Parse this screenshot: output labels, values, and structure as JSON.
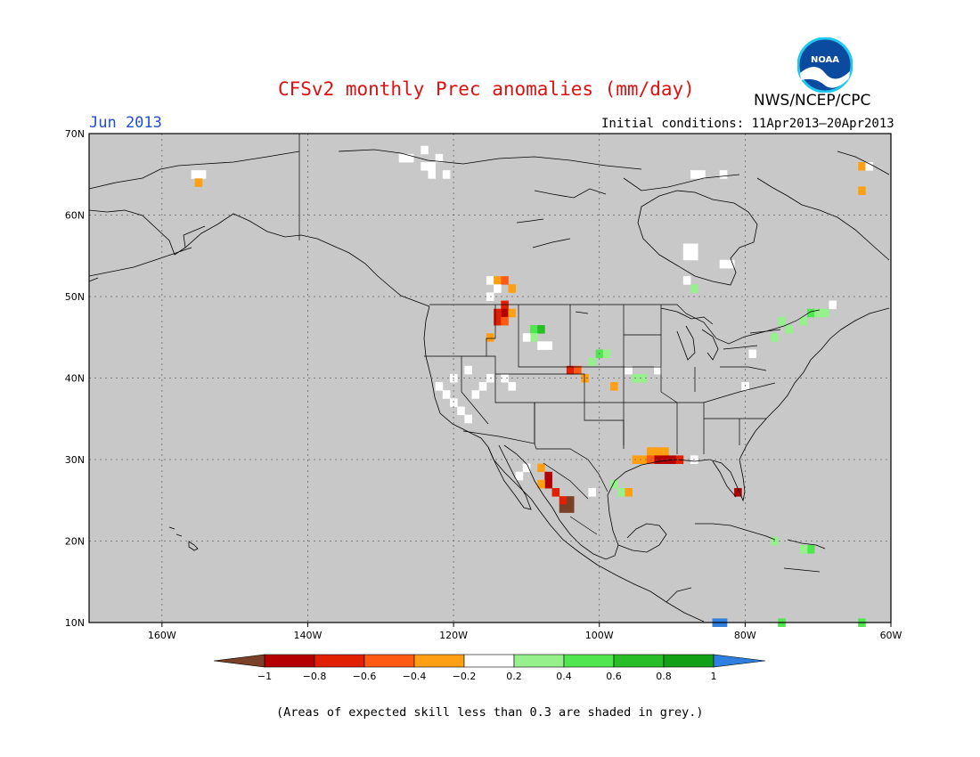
{
  "title": "CFSv2 monthly Prec anomalies (mm/day)",
  "agency": "NWS/NCEP/CPC",
  "logo_text": "NOAA",
  "month": "Jun 2013",
  "initial_conditions": "Initial conditions: 11Apr2013–20Apr2013",
  "footnote": "(Areas of expected skill less than 0.3 are shaded in grey.)",
  "map": {
    "lon_range": [
      -170,
      -60
    ],
    "lat_range": [
      10,
      70
    ],
    "background_color": "#c8c8c8",
    "lat_ticks": [
      {
        "value": 70,
        "label": "70N"
      },
      {
        "value": 60,
        "label": "60N"
      },
      {
        "value": 50,
        "label": "50N"
      },
      {
        "value": 40,
        "label": "40N"
      },
      {
        "value": 30,
        "label": "30N"
      },
      {
        "value": 20,
        "label": "20N"
      },
      {
        "value": 10,
        "label": "10N"
      }
    ],
    "lon_ticks": [
      {
        "value": -160,
        "label": "160W"
      },
      {
        "value": -140,
        "label": "140W"
      },
      {
        "value": -120,
        "label": "120W"
      },
      {
        "value": -100,
        "label": "100W"
      },
      {
        "value": -80,
        "label": "80W"
      },
      {
        "value": -60,
        "label": "60W"
      }
    ]
  },
  "colorbar": {
    "labels": [
      "−1",
      "−0.8",
      "−0.6",
      "−0.4",
      "−0.2",
      "0.2",
      "0.4",
      "0.6",
      "0.8",
      "1"
    ],
    "low_extend_color": "#7a4028",
    "high_extend_color": "#2f7fe0",
    "colors": [
      "#b40000",
      "#e02000",
      "#ff5a14",
      "#ffa014",
      "#ffffff",
      "#96f08c",
      "#50e650",
      "#28be28",
      "#14a014"
    ]
  },
  "anomaly_cells": [
    {
      "lon": -154.5,
      "lat": 65,
      "c": "#ffffff"
    },
    {
      "lon": -155.5,
      "lat": 65,
      "c": "#ffffff"
    },
    {
      "lon": -155,
      "lat": 64,
      "c": "#ffa014"
    },
    {
      "lon": -127,
      "lat": 67,
      "c": "#ffffff"
    },
    {
      "lon": -124,
      "lat": 68,
      "c": "#ffffff"
    },
    {
      "lon": -126,
      "lat": 67,
      "c": "#ffffff"
    },
    {
      "lon": -124,
      "lat": 66,
      "c": "#ffffff"
    },
    {
      "lon": -123,
      "lat": 66,
      "c": "#ffffff"
    },
    {
      "lon": -122,
      "lat": 67,
      "c": "#ffffff"
    },
    {
      "lon": -123,
      "lat": 65,
      "c": "#ffffff"
    },
    {
      "lon": -121,
      "lat": 65,
      "c": "#ffffff"
    },
    {
      "lon": -86,
      "lat": 65,
      "c": "#ffffff"
    },
    {
      "lon": -87,
      "lat": 65,
      "c": "#ffffff"
    },
    {
      "lon": -83,
      "lat": 65,
      "c": "#ffffff"
    },
    {
      "lon": -64,
      "lat": 66,
      "c": "#ffa014"
    },
    {
      "lon": -64,
      "lat": 63,
      "c": "#ffa014"
    },
    {
      "lon": -63,
      "lat": 66,
      "c": "#ffffff"
    },
    {
      "lon": -88,
      "lat": 56,
      "c": "#ffffff"
    },
    {
      "lon": -87,
      "lat": 56,
      "c": "#ffffff"
    },
    {
      "lon": -88,
      "lat": 55,
      "c": "#ffffff"
    },
    {
      "lon": -87,
      "lat": 55,
      "c": "#ffffff"
    },
    {
      "lon": -83,
      "lat": 54,
      "c": "#ffffff"
    },
    {
      "lon": -82,
      "lat": 54,
      "c": "#ffffff"
    },
    {
      "lon": -88,
      "lat": 52,
      "c": "#ffffff"
    },
    {
      "lon": -87,
      "lat": 51,
      "c": "#96f08c"
    },
    {
      "lon": -115,
      "lat": 52,
      "c": "#ffffff"
    },
    {
      "lon": -114,
      "lat": 52,
      "c": "#ffa014"
    },
    {
      "lon": -113,
      "lat": 52,
      "c": "#ff5a14"
    },
    {
      "lon": -112,
      "lat": 51,
      "c": "#ffa014"
    },
    {
      "lon": -114,
      "lat": 51,
      "c": "#ffffff"
    },
    {
      "lon": -115,
      "lat": 50,
      "c": "#ffffff"
    },
    {
      "lon": -113,
      "lat": 49,
      "c": "#e02000"
    },
    {
      "lon": -113,
      "lat": 48,
      "c": "#b40000"
    },
    {
      "lon": -114,
      "lat": 48,
      "c": "#e02000"
    },
    {
      "lon": -112,
      "lat": 48,
      "c": "#ffa014"
    },
    {
      "lon": -114,
      "lat": 47,
      "c": "#e02000"
    },
    {
      "lon": -113,
      "lat": 47,
      "c": "#ff5a14"
    },
    {
      "lon": -115,
      "lat": 45,
      "c": "#ffa014"
    },
    {
      "lon": -109,
      "lat": 46,
      "c": "#50e650"
    },
    {
      "lon": -108,
      "lat": 46,
      "c": "#28be28"
    },
    {
      "lon": -109,
      "lat": 45,
      "c": "#96f08c"
    },
    {
      "lon": -110,
      "lat": 45,
      "c": "#ffffff"
    },
    {
      "lon": -108,
      "lat": 44,
      "c": "#ffffff"
    },
    {
      "lon": -107,
      "lat": 44,
      "c": "#ffffff"
    },
    {
      "lon": -100,
      "lat": 43,
      "c": "#50e650"
    },
    {
      "lon": -99,
      "lat": 43,
      "c": "#96f08c"
    },
    {
      "lon": -101,
      "lat": 42,
      "c": "#96f08c"
    },
    {
      "lon": -104,
      "lat": 41,
      "c": "#e02000"
    },
    {
      "lon": -103,
      "lat": 41,
      "c": "#ff5a14"
    },
    {
      "lon": -102,
      "lat": 40,
      "c": "#ffa014"
    },
    {
      "lon": -98,
      "lat": 39,
      "c": "#ffa014"
    },
    {
      "lon": -95,
      "lat": 40,
      "c": "#96f08c"
    },
    {
      "lon": -94,
      "lat": 40,
      "c": "#96f08c"
    },
    {
      "lon": -96,
      "lat": 41,
      "c": "#ffffff"
    },
    {
      "lon": -92,
      "lat": 41,
      "c": "#ffffff"
    },
    {
      "lon": -122,
      "lat": 39,
      "c": "#ffffff"
    },
    {
      "lon": -121,
      "lat": 38,
      "c": "#ffffff"
    },
    {
      "lon": -120,
      "lat": 37,
      "c": "#ffffff"
    },
    {
      "lon": -119,
      "lat": 36,
      "c": "#ffffff"
    },
    {
      "lon": -118,
      "lat": 35,
      "c": "#ffffff"
    },
    {
      "lon": -120,
      "lat": 40,
      "c": "#ffffff"
    },
    {
      "lon": -118,
      "lat": 41,
      "c": "#ffffff"
    },
    {
      "lon": -116,
      "lat": 39,
      "c": "#ffffff"
    },
    {
      "lon": -117,
      "lat": 38,
      "c": "#ffffff"
    },
    {
      "lon": -115,
      "lat": 40,
      "c": "#ffffff"
    },
    {
      "lon": -113,
      "lat": 40,
      "c": "#ffffff"
    },
    {
      "lon": -112,
      "lat": 39,
      "c": "#ffffff"
    },
    {
      "lon": -110,
      "lat": 29,
      "c": "#ffffff"
    },
    {
      "lon": -111,
      "lat": 28,
      "c": "#ffffff"
    },
    {
      "lon": -108,
      "lat": 29,
      "c": "#ffa014"
    },
    {
      "lon": -107,
      "lat": 28,
      "c": "#b40000"
    },
    {
      "lon": -107,
      "lat": 27,
      "c": "#b40000"
    },
    {
      "lon": -108,
      "lat": 27,
      "c": "#ffa014"
    },
    {
      "lon": -106,
      "lat": 26,
      "c": "#e02000"
    },
    {
      "lon": -105,
      "lat": 25,
      "c": "#e02000"
    },
    {
      "lon": -104,
      "lat": 25,
      "c": "#7a4028"
    },
    {
      "lon": -104,
      "lat": 24,
      "c": "#7a4028"
    },
    {
      "lon": -105,
      "lat": 24,
      "c": "#7a4028"
    },
    {
      "lon": -101,
      "lat": 26,
      "c": "#ffffff"
    },
    {
      "lon": -98,
      "lat": 27,
      "c": "#96f08c"
    },
    {
      "lon": -97,
      "lat": 26,
      "c": "#96f08c"
    },
    {
      "lon": -96,
      "lat": 26,
      "c": "#ffa014"
    },
    {
      "lon": -95,
      "lat": 30,
      "c": "#ffa014"
    },
    {
      "lon": -94,
      "lat": 30,
      "c": "#ffa014"
    },
    {
      "lon": -93,
      "lat": 31,
      "c": "#ffa014"
    },
    {
      "lon": -92,
      "lat": 31,
      "c": "#ffa014"
    },
    {
      "lon": -91,
      "lat": 31,
      "c": "#ffa014"
    },
    {
      "lon": -92,
      "lat": 30,
      "c": "#b40000"
    },
    {
      "lon": -91,
      "lat": 30,
      "c": "#b40000"
    },
    {
      "lon": -90,
      "lat": 30,
      "c": "#b40000"
    },
    {
      "lon": -89,
      "lat": 30,
      "c": "#e02000"
    },
    {
      "lon": -93,
      "lat": 30,
      "c": "#ff5a14"
    },
    {
      "lon": -87,
      "lat": 30,
      "c": "#ffffff"
    },
    {
      "lon": -81,
      "lat": 26,
      "c": "#b40000"
    },
    {
      "lon": -75,
      "lat": 47,
      "c": "#96f08c"
    },
    {
      "lon": -74,
      "lat": 46,
      "c": "#96f08c"
    },
    {
      "lon": -72,
      "lat": 47,
      "c": "#96f08c"
    },
    {
      "lon": -71,
      "lat": 48,
      "c": "#50e650"
    },
    {
      "lon": -70,
      "lat": 48,
      "c": "#96f08c"
    },
    {
      "lon": -69,
      "lat": 48,
      "c": "#96f08c"
    },
    {
      "lon": -68,
      "lat": 49,
      "c": "#ffffff"
    },
    {
      "lon": -76,
      "lat": 45,
      "c": "#96f08c"
    },
    {
      "lon": -76,
      "lat": 20,
      "c": "#96f08c"
    },
    {
      "lon": -71,
      "lat": 19,
      "c": "#50e650"
    },
    {
      "lon": -72,
      "lat": 19,
      "c": "#96f08c"
    },
    {
      "lon": -84,
      "lat": 10,
      "c": "#2f7fe0"
    },
    {
      "lon": -83,
      "lat": 10,
      "c": "#2f7fe0"
    },
    {
      "lon": -75,
      "lat": 10,
      "c": "#50e650"
    },
    {
      "lon": -64,
      "lat": 10,
      "c": "#50e650"
    },
    {
      "lon": -79,
      "lat": 43,
      "c": "#ffffff"
    },
    {
      "lon": -80,
      "lat": 39,
      "c": "#ffffff"
    }
  ]
}
